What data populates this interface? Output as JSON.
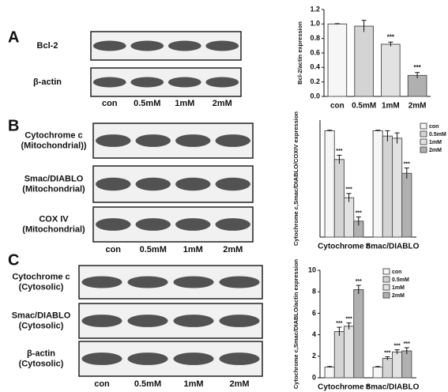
{
  "panels": [
    {
      "label": "A",
      "rows": [
        {
          "lines": [
            "Bcl-2"
          ]
        },
        {
          "lines": [
            "β-actin"
          ]
        }
      ],
      "lanes": [
        "con",
        "0.5mM",
        "1mM",
        "2mM"
      ]
    },
    {
      "label": "B",
      "rows": [
        {
          "lines": [
            "Cytochrome c",
            "(Mitochondrial))"
          ]
        },
        {
          "lines": [
            "Smac/DIABLO",
            "(Mitochondrial)"
          ]
        },
        {
          "lines": [
            "COX IV",
            "(Mitochondrial)"
          ]
        }
      ],
      "lanes": [
        "con",
        "0.5mM",
        "1mM",
        "2mM"
      ]
    },
    {
      "label": "C",
      "rows": [
        {
          "lines": [
            "Cytochrome c",
            "(Cytosolic)"
          ]
        },
        {
          "lines": [
            "Smac/DIABLO",
            "(Cytosolic)"
          ]
        },
        {
          "lines": [
            "β-actin",
            "(Cytosolic)"
          ]
        }
      ],
      "lanes": [
        "con",
        "0.5mM",
        "1mM",
        "2mM"
      ]
    }
  ],
  "chart_data": [
    {
      "type": "bar",
      "ylabel": "Bcl-2/actin expression",
      "categories": [
        "con",
        "0.5mM",
        "1mM",
        "2mM"
      ],
      "values": [
        1.0,
        0.97,
        0.72,
        0.29
      ],
      "errors": [
        0.005,
        0.08,
        0.03,
        0.04
      ],
      "significance": [
        null,
        null,
        "***",
        "***"
      ],
      "colors": [
        "#f6f6f6",
        "#d4d4d4",
        "#e2e2e2",
        "#b0b0b0"
      ],
      "ylim": [
        0,
        1.2
      ],
      "yticks": [
        {
          "value": 0,
          "label": "0.0"
        },
        0.2,
        0.4,
        0.6,
        0.8,
        {
          "value": 1,
          "label": "1.0"
        },
        1.2
      ]
    },
    {
      "type": "grouped_bar",
      "ylabel": "Cytochrome c,Smac/DIABLO/COXIV expression",
      "categories": [
        "Cytochrome c",
        "Smac/DIABLO"
      ],
      "series": [
        {
          "name": "con",
          "color": "#f6f6f6",
          "values": [
            1.0,
            1.0
          ],
          "errors": [
            0.005,
            0.005
          ],
          "significance": [
            null,
            null
          ]
        },
        {
          "name": "0.5mM",
          "color": "#d4d4d4",
          "values": [
            0.73,
            0.95
          ],
          "errors": [
            0.04,
            0.05
          ],
          "significance": [
            "***",
            null
          ]
        },
        {
          "name": "1mM",
          "color": "#e2e2e2",
          "values": [
            0.37,
            0.93
          ],
          "errors": [
            0.04,
            0.05
          ],
          "significance": [
            "***",
            null
          ]
        },
        {
          "name": "2mM",
          "color": "#b0b0b0",
          "values": [
            0.15,
            0.6
          ],
          "errors": [
            0.04,
            0.05
          ],
          "significance": [
            "***",
            "***"
          ]
        }
      ],
      "ylim": [
        0,
        1.1
      ],
      "legend": "upper right"
    },
    {
      "type": "grouped_bar",
      "ylabel": "Cytochrome c,Smac/DIABLO/actin expression",
      "categories": [
        "Cytochrome c",
        "Smac/DIABLO"
      ],
      "series": [
        {
          "name": "con",
          "color": "#f6f6f6",
          "values": [
            1.0,
            1.0
          ],
          "errors": [
            0.05,
            0.05
          ],
          "significance": [
            null,
            null
          ]
        },
        {
          "name": "0.5mM",
          "color": "#d4d4d4",
          "values": [
            4.3,
            1.8
          ],
          "errors": [
            0.4,
            0.15
          ],
          "significance": [
            "***",
            "***"
          ]
        },
        {
          "name": "1mM",
          "color": "#e2e2e2",
          "values": [
            4.8,
            2.4
          ],
          "errors": [
            0.3,
            0.2
          ],
          "significance": [
            "***",
            "***"
          ]
        },
        {
          "name": "2mM",
          "color": "#b0b0b0",
          "values": [
            8.2,
            2.5
          ],
          "errors": [
            0.4,
            0.3
          ],
          "significance": [
            "***",
            "***"
          ]
        }
      ],
      "ylim": [
        0,
        10
      ],
      "yticks": [
        0,
        2,
        4,
        6,
        8,
        10
      ],
      "legend": "upper right"
    }
  ]
}
